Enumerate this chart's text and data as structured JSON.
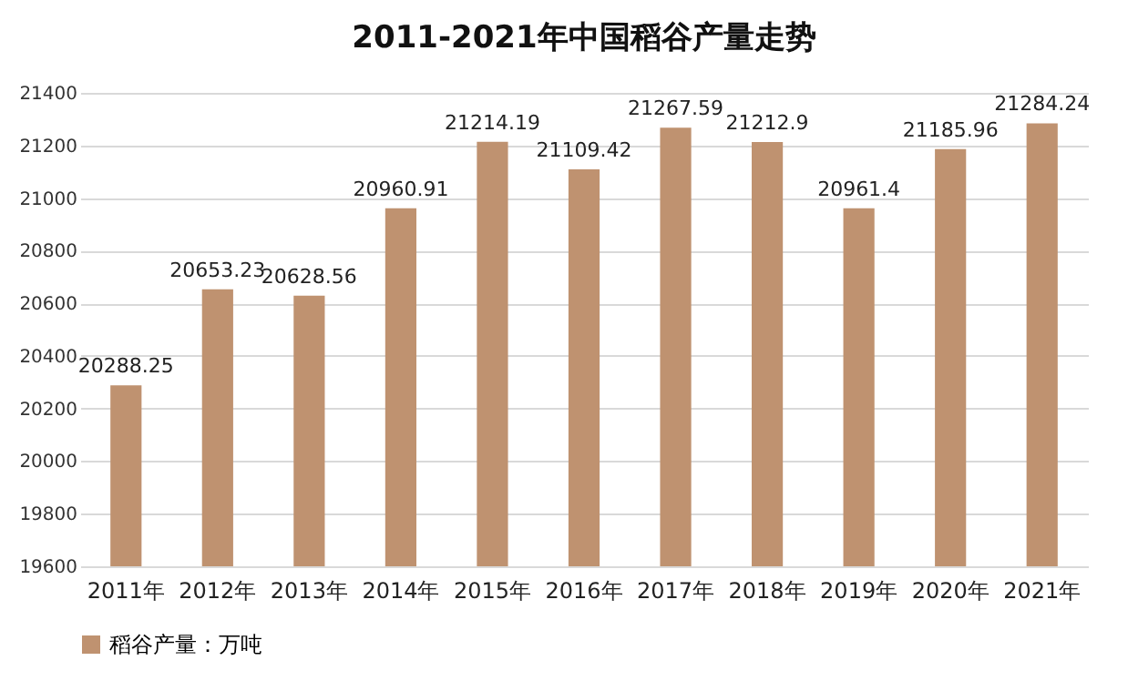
{
  "chart_data": {
    "type": "bar",
    "title": "2011-2021年中国稻谷产量走势",
    "categories": [
      "2011年",
      "2012年",
      "2013年",
      "2014年",
      "2015年",
      "2016年",
      "2017年",
      "2018年",
      "2019年",
      "2020年",
      "2021年"
    ],
    "series": [
      {
        "name": "稻谷产量：万吨",
        "color": "#bf9270",
        "values": [
          20288.25,
          20653.23,
          20628.56,
          20960.91,
          21214.19,
          21109.42,
          21267.59,
          21212.9,
          20961.4,
          21185.96,
          21284.24
        ]
      }
    ],
    "ylim": [
      19600,
      21400
    ],
    "yticks": [
      19600,
      19800,
      20000,
      20200,
      20400,
      20600,
      20800,
      21000,
      21200,
      21400
    ],
    "grid": "y",
    "legend": "bottom",
    "data_labels": true
  }
}
